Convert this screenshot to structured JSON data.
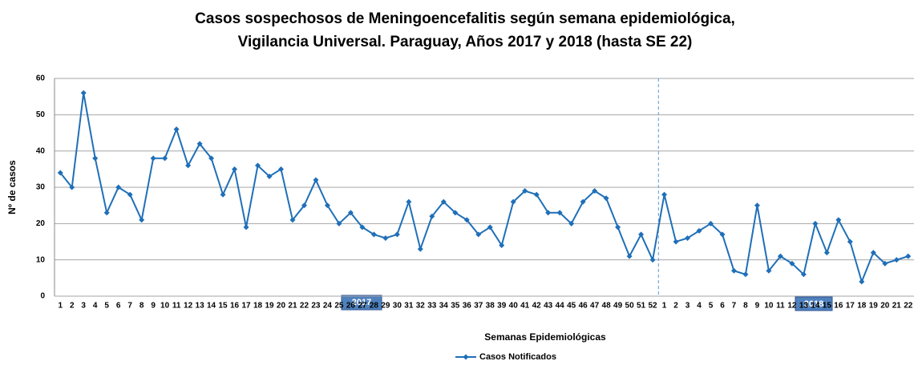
{
  "chart_data": {
    "type": "line",
    "title": [
      "Casos sospechosos de Meningoencefalitis según semana epidemiológica,",
      "Vigilancia Universal. Paraguay, Años 2017 y 2018 (hasta SE 22)"
    ],
    "xlabel": "Semanas Epidemiológicas",
    "ylabel": "Nº de casos",
    "year_labels": [
      "2017",
      "2018"
    ],
    "categories": [
      "1",
      "2",
      "3",
      "4",
      "5",
      "6",
      "7",
      "8",
      "9",
      "10",
      "11",
      "12",
      "13",
      "14",
      "15",
      "16",
      "17",
      "18",
      "19",
      "20",
      "21",
      "22",
      "23",
      "24",
      "25",
      "26",
      "27",
      "28",
      "29",
      "30",
      "31",
      "32",
      "33",
      "34",
      "35",
      "36",
      "37",
      "38",
      "39",
      "40",
      "41",
      "42",
      "43",
      "44",
      "45",
      "46",
      "47",
      "48",
      "49",
      "50",
      "51",
      "52",
      "1",
      "2",
      "3",
      "4",
      "5",
      "6",
      "7",
      "8",
      "9",
      "10",
      "11",
      "12",
      "13",
      "14",
      "15",
      "16",
      "17",
      "18",
      "19",
      "20",
      "21",
      "22"
    ],
    "series": [
      {
        "name": "Casos Notificados",
        "color": "#1f6fb8",
        "values": [
          34,
          30,
          56,
          38,
          23,
          30,
          28,
          21,
          38,
          38,
          46,
          36,
          42,
          38,
          28,
          35,
          19,
          36,
          33,
          35,
          21,
          25,
          32,
          25,
          20,
          23,
          19,
          17,
          16,
          17,
          26,
          13,
          22,
          26,
          23,
          21,
          17,
          19,
          14,
          26,
          29,
          28,
          23,
          23,
          20,
          26,
          29,
          27,
          19,
          11,
          17,
          10,
          28,
          15,
          16,
          18,
          20,
          17,
          7,
          6,
          25,
          7,
          11,
          9,
          6,
          20,
          12,
          21,
          15,
          4,
          12,
          9,
          10,
          11
        ]
      }
    ],
    "ylim": [
      0,
      60
    ],
    "yticks": [
      0,
      10,
      20,
      30,
      40,
      50,
      60
    ],
    "grid": true
  }
}
